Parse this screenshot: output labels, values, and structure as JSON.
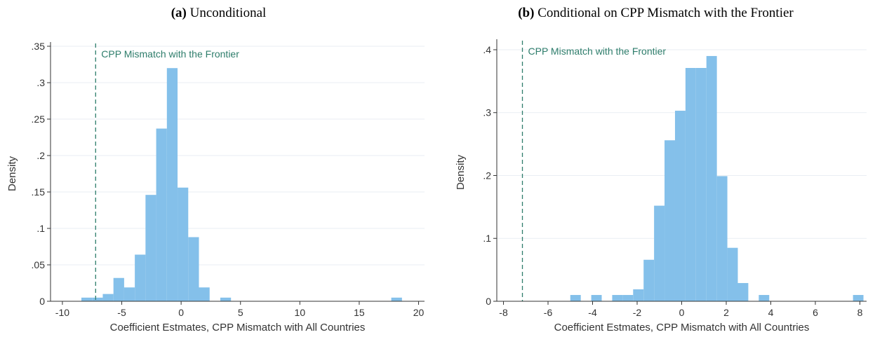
{
  "chart_data": [
    {
      "type": "bar",
      "panel_label": "(a)",
      "title": "Unconditional",
      "xlabel": "Coefficient Estmates, CPP Mismatch with All Countries",
      "ylabel": "Density",
      "xlim": [
        -11,
        20.5
      ],
      "ylim": [
        0,
        0.35
      ],
      "xticks": [
        -10,
        -5,
        0,
        5,
        10,
        15,
        20
      ],
      "xtick_labels": [
        "-10",
        "-5",
        "0",
        "5",
        "10",
        "15",
        "20"
      ],
      "yticks": [
        0,
        0.05,
        0.1,
        0.15,
        0.2,
        0.25,
        0.3,
        0.35
      ],
      "ytick_labels": [
        "0",
        ".05",
        ".1",
        ".15",
        ".2",
        ".25",
        ".3",
        ".35"
      ],
      "grid": true,
      "bar_color": "#84c0ea",
      "bin_width": 0.9,
      "bins": [
        {
          "start": -8.4,
          "value": 0.005
        },
        {
          "start": -7.5,
          "value": 0.005
        },
        {
          "start": -6.6,
          "value": 0.01
        },
        {
          "start": -5.7,
          "value": 0.032
        },
        {
          "start": -4.8,
          "value": 0.019
        },
        {
          "start": -3.9,
          "value": 0.064
        },
        {
          "start": -3.0,
          "value": 0.146
        },
        {
          "start": -2.1,
          "value": 0.237
        },
        {
          "start": -1.2,
          "value": 0.32
        },
        {
          "start": -0.3,
          "value": 0.156
        },
        {
          "start": 0.6,
          "value": 0.088
        },
        {
          "start": 1.5,
          "value": 0.019
        },
        {
          "start": 3.3,
          "value": 0.005
        },
        {
          "start": 17.7,
          "value": 0.005
        }
      ],
      "reference_line": {
        "x": -7.2,
        "label": "CPP Mismatch with the Frontier",
        "color": "#2e7d6b"
      }
    },
    {
      "type": "bar",
      "panel_label": "(b)",
      "title": "Conditional on CPP Mismatch with the Frontier",
      "xlabel": "Coefficient Estmates, CPP Mismatch with All Countries",
      "ylabel": "Density",
      "xlim": [
        -8.3,
        8.3
      ],
      "ylim": [
        0,
        0.41
      ],
      "xticks": [
        -8,
        -6,
        -4,
        -2,
        0,
        2,
        4,
        6,
        8
      ],
      "xtick_labels": [
        "-8",
        "-6",
        "-4",
        "-2",
        "0",
        "2",
        "4",
        "6",
        "8"
      ],
      "yticks": [
        0,
        0.1,
        0.2,
        0.3,
        0.4
      ],
      "ytick_labels": [
        "0",
        ".1",
        ".2",
        ".3",
        ".4"
      ],
      "grid": true,
      "bar_color": "#84c0ea",
      "bin_width": 0.47,
      "bins": [
        {
          "start": -5.0,
          "value": 0.01
        },
        {
          "start": -4.06,
          "value": 0.01
        },
        {
          "start": -3.12,
          "value": 0.01
        },
        {
          "start": -2.65,
          "value": 0.01
        },
        {
          "start": -2.18,
          "value": 0.019
        },
        {
          "start": -1.71,
          "value": 0.066
        },
        {
          "start": -1.24,
          "value": 0.152
        },
        {
          "start": -0.77,
          "value": 0.256
        },
        {
          "start": -0.3,
          "value": 0.303
        },
        {
          "start": 0.17,
          "value": 0.371
        },
        {
          "start": 0.64,
          "value": 0.371
        },
        {
          "start": 1.11,
          "value": 0.39
        },
        {
          "start": 1.58,
          "value": 0.199
        },
        {
          "start": 2.05,
          "value": 0.085
        },
        {
          "start": 2.52,
          "value": 0.029
        },
        {
          "start": 3.46,
          "value": 0.01
        },
        {
          "start": 7.69,
          "value": 0.01
        }
      ],
      "reference_line": {
        "x": -7.15,
        "label": "CPP Mismatch with the Frontier",
        "color": "#2e7d6b"
      }
    }
  ]
}
